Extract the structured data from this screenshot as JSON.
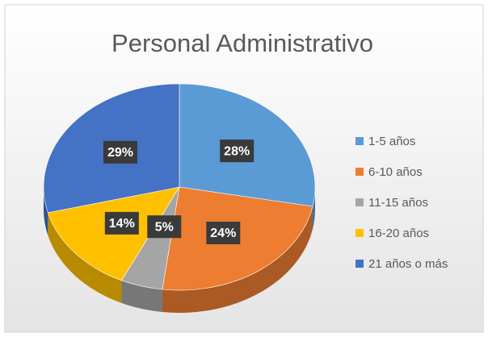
{
  "chart_data": {
    "type": "pie",
    "title": "Personal Administrativo",
    "categories": [
      "1-5 años",
      "6-10 años",
      "11-15 años",
      "16-20 años",
      "21 años o más"
    ],
    "values": [
      28,
      24,
      5,
      14,
      29
    ],
    "value_labels": [
      "28%",
      "24%",
      "5%",
      "14%",
      "29%"
    ],
    "colors": [
      "#5b9bd5",
      "#ed7d31",
      "#a5a5a5",
      "#ffc000",
      "#4472c4"
    ],
    "legend": "right"
  }
}
